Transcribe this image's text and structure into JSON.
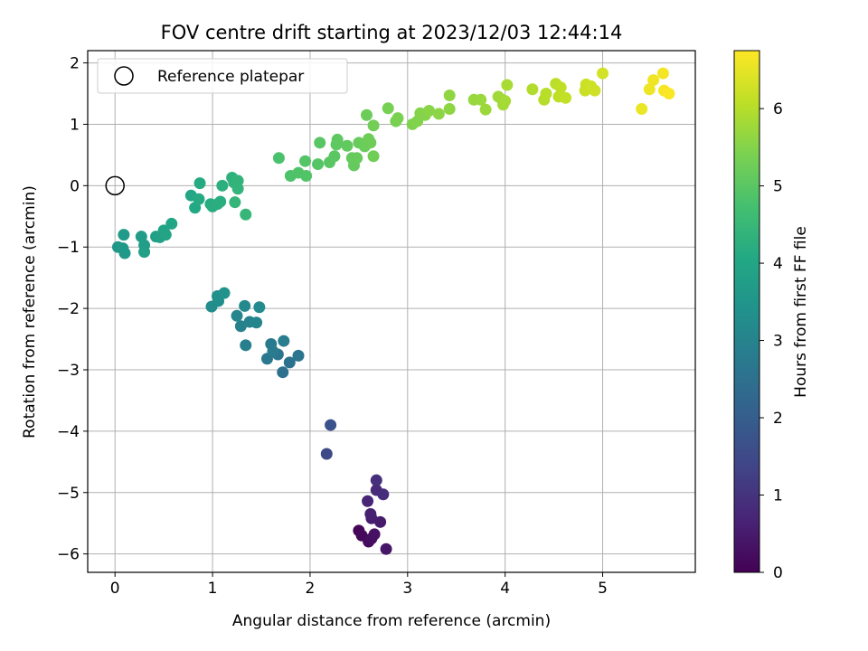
{
  "chart_data": {
    "type": "scatter",
    "title": "FOV centre drift starting at 2023/12/03 12:44:14",
    "xlabel": "Angular distance from reference (arcmin)",
    "ylabel": "Rotation from reference (arcmin)",
    "colorbar_label": "Hours from first FF file",
    "xlim": [
      -0.28,
      5.95
    ],
    "ylim": [
      -6.3,
      2.2
    ],
    "x_ticks": [
      0,
      1,
      2,
      3,
      4,
      5
    ],
    "y_ticks": [
      -6,
      -5,
      -4,
      -3,
      -2,
      -1,
      0,
      1,
      2
    ],
    "colorbar_range": [
      0,
      6.75
    ],
    "colorbar_ticks": [
      0,
      1,
      2,
      3,
      4,
      5,
      6
    ],
    "colormap": "viridis",
    "grid": true,
    "legend": {
      "position": "top-left",
      "label": "Reference platepar"
    },
    "reference_point": {
      "x": 0,
      "y": 0
    },
    "points": [
      {
        "x": 2.5,
        "y": -5.62,
        "t": 0.1
      },
      {
        "x": 2.53,
        "y": -5.7,
        "t": 0.15
      },
      {
        "x": 2.6,
        "y": -5.8,
        "t": 0.2
      },
      {
        "x": 2.63,
        "y": -5.75,
        "t": 0.25
      },
      {
        "x": 2.66,
        "y": -5.68,
        "t": 0.3
      },
      {
        "x": 2.78,
        "y": -5.92,
        "t": 0.4
      },
      {
        "x": 2.72,
        "y": -5.48,
        "t": 0.5
      },
      {
        "x": 2.63,
        "y": -5.42,
        "t": 0.55
      },
      {
        "x": 2.62,
        "y": -5.35,
        "t": 0.6
      },
      {
        "x": 2.59,
        "y": -5.14,
        "t": 0.7
      },
      {
        "x": 2.68,
        "y": -4.96,
        "t": 0.8
      },
      {
        "x": 2.75,
        "y": -5.03,
        "t": 0.85
      },
      {
        "x": 2.68,
        "y": -4.8,
        "t": 0.9
      },
      {
        "x": 2.17,
        "y": -4.37,
        "t": 1.5
      },
      {
        "x": 2.21,
        "y": -3.9,
        "t": 1.7
      },
      {
        "x": 1.72,
        "y": -3.04,
        "t": 2.5
      },
      {
        "x": 1.79,
        "y": -2.88,
        "t": 2.55
      },
      {
        "x": 1.67,
        "y": -2.75,
        "t": 2.6
      },
      {
        "x": 1.88,
        "y": -2.77,
        "t": 2.65
      },
      {
        "x": 1.56,
        "y": -2.82,
        "t": 2.7
      },
      {
        "x": 1.6,
        "y": -2.58,
        "t": 2.75
      },
      {
        "x": 1.62,
        "y": -2.7,
        "t": 2.8
      },
      {
        "x": 1.73,
        "y": -2.53,
        "t": 2.85
      },
      {
        "x": 1.34,
        "y": -2.6,
        "t": 2.9
      },
      {
        "x": 1.29,
        "y": -2.29,
        "t": 2.95
      },
      {
        "x": 1.38,
        "y": -2.22,
        "t": 3.0
      },
      {
        "x": 1.45,
        "y": -2.23,
        "t": 3.05
      },
      {
        "x": 1.25,
        "y": -2.12,
        "t": 3.1
      },
      {
        "x": 1.33,
        "y": -1.96,
        "t": 3.15
      },
      {
        "x": 1.48,
        "y": -1.98,
        "t": 3.2
      },
      {
        "x": 0.99,
        "y": -1.97,
        "t": 3.25
      },
      {
        "x": 1.06,
        "y": -1.88,
        "t": 3.3
      },
      {
        "x": 1.05,
        "y": -1.8,
        "t": 3.35
      },
      {
        "x": 1.12,
        "y": -1.75,
        "t": 3.4
      },
      {
        "x": 0.03,
        "y": -1.0,
        "t": 3.55
      },
      {
        "x": 0.08,
        "y": -1.02,
        "t": 3.6
      },
      {
        "x": 0.1,
        "y": -1.1,
        "t": 3.62
      },
      {
        "x": 0.09,
        "y": -0.8,
        "t": 3.65
      },
      {
        "x": 0.27,
        "y": -0.83,
        "t": 3.7
      },
      {
        "x": 0.3,
        "y": -0.97,
        "t": 3.75
      },
      {
        "x": 0.3,
        "y": -1.08,
        "t": 3.78
      },
      {
        "x": 0.42,
        "y": -0.83,
        "t": 3.8
      },
      {
        "x": 0.46,
        "y": -0.84,
        "t": 3.85
      },
      {
        "x": 0.5,
        "y": -0.73,
        "t": 3.9
      },
      {
        "x": 0.52,
        "y": -0.8,
        "t": 3.93
      },
      {
        "x": 0.58,
        "y": -0.62,
        "t": 3.95
      },
      {
        "x": 0.78,
        "y": -0.16,
        "t": 4.0
      },
      {
        "x": 0.82,
        "y": -0.36,
        "t": 4.05
      },
      {
        "x": 0.86,
        "y": -0.22,
        "t": 4.1
      },
      {
        "x": 0.87,
        "y": 0.04,
        "t": 4.12
      },
      {
        "x": 0.98,
        "y": -0.3,
        "t": 4.15
      },
      {
        "x": 1.0,
        "y": -0.34,
        "t": 4.18
      },
      {
        "x": 1.05,
        "y": -0.3,
        "t": 4.2
      },
      {
        "x": 1.08,
        "y": -0.26,
        "t": 4.22
      },
      {
        "x": 1.1,
        "y": 0.0,
        "t": 4.25
      },
      {
        "x": 1.2,
        "y": 0.13,
        "t": 4.3
      },
      {
        "x": 1.22,
        "y": 0.05,
        "t": 4.35
      },
      {
        "x": 1.26,
        "y": 0.08,
        "t": 4.38
      },
      {
        "x": 1.26,
        "y": -0.05,
        "t": 4.4
      },
      {
        "x": 1.23,
        "y": -0.27,
        "t": 4.42
      },
      {
        "x": 1.34,
        "y": -0.47,
        "t": 4.45
      },
      {
        "x": 1.68,
        "y": 0.45,
        "t": 4.8
      },
      {
        "x": 1.8,
        "y": 0.16,
        "t": 4.85
      },
      {
        "x": 1.88,
        "y": 0.21,
        "t": 4.88
      },
      {
        "x": 1.96,
        "y": 0.16,
        "t": 4.9
      },
      {
        "x": 1.95,
        "y": 0.4,
        "t": 4.92
      },
      {
        "x": 2.08,
        "y": 0.35,
        "t": 4.95
      },
      {
        "x": 2.1,
        "y": 0.7,
        "t": 4.98
      },
      {
        "x": 2.2,
        "y": 0.38,
        "t": 5.0
      },
      {
        "x": 2.25,
        "y": 0.48,
        "t": 5.02
      },
      {
        "x": 2.27,
        "y": 0.67,
        "t": 5.05
      },
      {
        "x": 2.28,
        "y": 0.75,
        "t": 5.07
      },
      {
        "x": 2.38,
        "y": 0.65,
        "t": 5.1
      },
      {
        "x": 2.43,
        "y": 0.45,
        "t": 5.12
      },
      {
        "x": 2.45,
        "y": 0.33,
        "t": 5.14
      },
      {
        "x": 2.48,
        "y": 0.45,
        "t": 5.16
      },
      {
        "x": 2.5,
        "y": 0.7,
        "t": 5.18
      },
      {
        "x": 2.56,
        "y": 0.64,
        "t": 5.2
      },
      {
        "x": 2.58,
        "y": 1.15,
        "t": 5.22
      },
      {
        "x": 2.6,
        "y": 0.76,
        "t": 5.24
      },
      {
        "x": 2.62,
        "y": 0.7,
        "t": 5.26
      },
      {
        "x": 2.65,
        "y": 0.48,
        "t": 5.28
      },
      {
        "x": 2.65,
        "y": 0.98,
        "t": 5.3
      },
      {
        "x": 2.8,
        "y": 1.26,
        "t": 5.35
      },
      {
        "x": 2.88,
        "y": 1.05,
        "t": 5.38
      },
      {
        "x": 2.9,
        "y": 1.1,
        "t": 5.4
      },
      {
        "x": 3.05,
        "y": 1.0,
        "t": 5.45
      },
      {
        "x": 3.1,
        "y": 1.05,
        "t": 5.48
      },
      {
        "x": 3.13,
        "y": 1.18,
        "t": 5.5
      },
      {
        "x": 3.18,
        "y": 1.15,
        "t": 5.52
      },
      {
        "x": 3.22,
        "y": 1.22,
        "t": 5.55
      },
      {
        "x": 3.32,
        "y": 1.17,
        "t": 5.58
      },
      {
        "x": 3.43,
        "y": 1.25,
        "t": 5.6
      },
      {
        "x": 3.43,
        "y": 1.47,
        "t": 5.62
      },
      {
        "x": 3.68,
        "y": 1.4,
        "t": 5.7
      },
      {
        "x": 3.75,
        "y": 1.4,
        "t": 5.72
      },
      {
        "x": 3.8,
        "y": 1.24,
        "t": 5.75
      },
      {
        "x": 3.93,
        "y": 1.45,
        "t": 5.78
      },
      {
        "x": 3.97,
        "y": 1.4,
        "t": 5.8
      },
      {
        "x": 3.98,
        "y": 1.32,
        "t": 5.82
      },
      {
        "x": 4.0,
        "y": 1.38,
        "t": 5.84
      },
      {
        "x": 4.02,
        "y": 1.64,
        "t": 5.86
      },
      {
        "x": 4.28,
        "y": 1.57,
        "t": 5.95
      },
      {
        "x": 4.4,
        "y": 1.4,
        "t": 6.0
      },
      {
        "x": 4.42,
        "y": 1.5,
        "t": 6.02
      },
      {
        "x": 4.52,
        "y": 1.66,
        "t": 6.05
      },
      {
        "x": 4.55,
        "y": 1.45,
        "t": 6.08
      },
      {
        "x": 4.57,
        "y": 1.6,
        "t": 6.1
      },
      {
        "x": 4.62,
        "y": 1.43,
        "t": 6.12
      },
      {
        "x": 4.82,
        "y": 1.55,
        "t": 6.2
      },
      {
        "x": 4.83,
        "y": 1.65,
        "t": 6.22
      },
      {
        "x": 4.88,
        "y": 1.62,
        "t": 6.24
      },
      {
        "x": 4.92,
        "y": 1.55,
        "t": 6.26
      },
      {
        "x": 5.0,
        "y": 1.83,
        "t": 6.3
      },
      {
        "x": 5.4,
        "y": 1.25,
        "t": 6.55
      },
      {
        "x": 5.48,
        "y": 1.57,
        "t": 6.58
      },
      {
        "x": 5.52,
        "y": 1.72,
        "t": 6.6
      },
      {
        "x": 5.62,
        "y": 1.83,
        "t": 6.65
      },
      {
        "x": 5.63,
        "y": 1.55,
        "t": 6.68
      },
      {
        "x": 5.68,
        "y": 1.5,
        "t": 6.72
      }
    ]
  }
}
